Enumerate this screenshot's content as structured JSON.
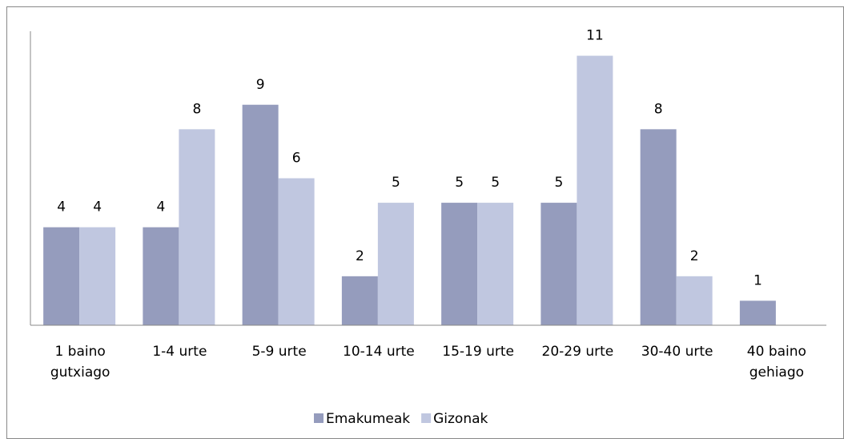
{
  "chart_data": {
    "type": "bar",
    "categories": [
      "1 baino gutxiago",
      "1-4 urte",
      "5-9 urte",
      "10-14 urte",
      "15-19 urte",
      "20-29 urte",
      "30-40 urte",
      "40 baino gehiago"
    ],
    "series": [
      {
        "name": "Emakumeak",
        "color": "#959cbd",
        "values": [
          4,
          4,
          9,
          2,
          5,
          5,
          8,
          1
        ]
      },
      {
        "name": "Gizonak",
        "color": "#c0c7e0",
        "values": [
          4,
          8,
          6,
          5,
          5,
          11,
          2,
          null
        ]
      }
    ],
    "ylim": [
      0,
      12
    ],
    "grid": false,
    "legend": "bottom"
  }
}
